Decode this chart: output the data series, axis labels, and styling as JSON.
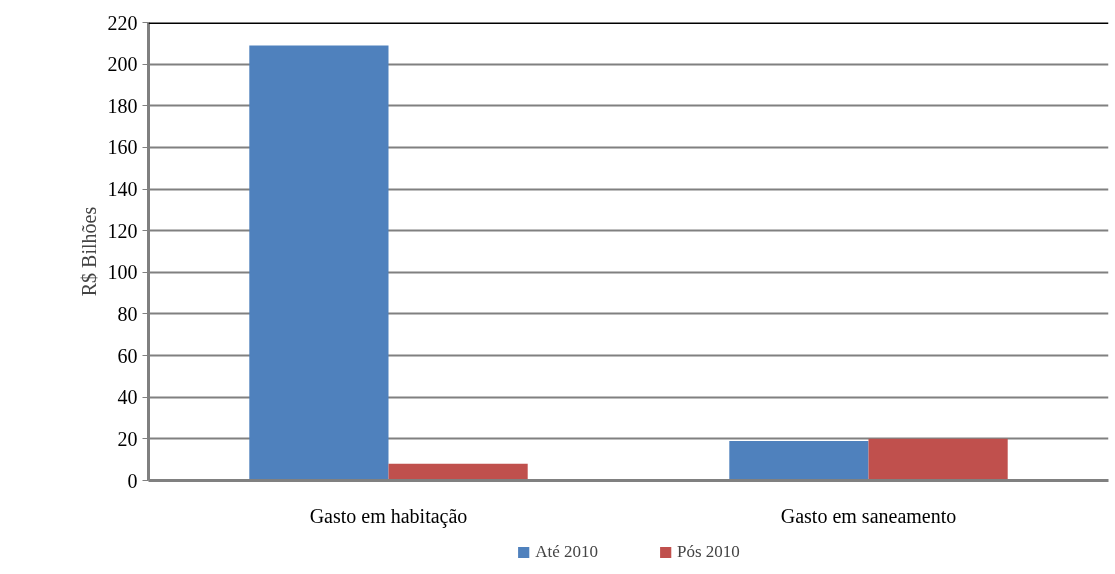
{
  "chart_data": {
    "type": "bar",
    "ylabel": "R$ Bilhões",
    "categories": [
      "Gasto em habitação",
      "Gasto em saneamento"
    ],
    "series": [
      {
        "name": "Até 2010",
        "color": "#4f81bd",
        "values": [
          209,
          19
        ]
      },
      {
        "name": "Pós 2010",
        "color": "#c0504d",
        "values": [
          8,
          20
        ]
      }
    ],
    "ylim": [
      0,
      220
    ],
    "yticks": [
      0,
      20,
      40,
      60,
      80,
      100,
      120,
      140,
      160,
      180,
      200,
      220
    ],
    "grid": "y",
    "legend": "bottom"
  }
}
